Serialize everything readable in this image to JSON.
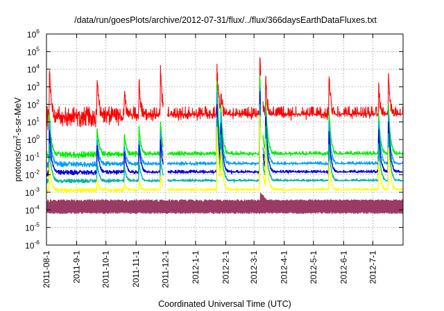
{
  "chart_data": {
    "type": "line",
    "title": "/data/run/goesPlots/archive/2012-07-31/flux/../flux/366daysEarthDataFluxes.txt",
    "xlabel": "Coordinated Universal Time (UTC)",
    "ylabel": {
      "base": "protons/cm",
      "sup": "2",
      "rest": "-s-sr-MeV"
    },
    "yscale": "log",
    "grid": true,
    "xlim": [
      "2011-08-01",
      "2012-08-01"
    ],
    "ylim": [
      1e-06,
      1000000.0
    ],
    "x_ticks": [
      "2011-08-1",
      "2011-9-1",
      "2011-10-1",
      "2011-11-1",
      "2011-12-1",
      "2012-1-1",
      "2012-2-1",
      "2012-3-1",
      "2012-4-1",
      "2012-5-1",
      "2012-6-1",
      "2012-7-1"
    ],
    "x_tick_dates": [
      "2011-08-01",
      "2011-09-01",
      "2011-10-01",
      "2011-11-01",
      "2011-12-01",
      "2012-01-01",
      "2012-02-01",
      "2012-03-01",
      "2012-04-01",
      "2012-05-01",
      "2012-06-01",
      "2012-07-01"
    ],
    "y_ticks": [
      {
        "value": 1e-06,
        "base": "10",
        "exp": "-6"
      },
      {
        "value": 1e-05,
        "base": "10",
        "exp": "-5"
      },
      {
        "value": 0.0001,
        "base": "10",
        "exp": "-4"
      },
      {
        "value": 0.001,
        "base": "10",
        "exp": "-3"
      },
      {
        "value": 0.01,
        "base": "10",
        "exp": "-2"
      },
      {
        "value": 0.1,
        "base": "10",
        "exp": "-1"
      },
      {
        "value": 1,
        "base": "10",
        "exp": "0"
      },
      {
        "value": 10,
        "base": "10",
        "exp": "1"
      },
      {
        "value": 100,
        "base": "10",
        "exp": "2"
      },
      {
        "value": 1000,
        "base": "10",
        "exp": "3"
      },
      {
        "value": 10000,
        "base": "10",
        "exp": "4"
      },
      {
        "value": 100000,
        "base": "10",
        "exp": "5"
      },
      {
        "value": 1000000,
        "base": "10",
        "exp": "6"
      }
    ],
    "series": [
      {
        "color": "#ff0000",
        "baseline": 12,
        "noise": 0.8,
        "events": [
          [
            "2011-08-04",
            10000
          ],
          [
            "2011-09-22",
            3000
          ],
          [
            "2011-10-20",
            600
          ],
          [
            "2011-11-04",
            2000
          ],
          [
            "2011-11-26",
            10000
          ],
          [
            "2012-01-23",
            10000
          ],
          [
            "2012-01-27",
            1000
          ],
          [
            "2012-03-07",
            100000
          ],
          [
            "2012-03-13",
            3000
          ],
          [
            "2012-05-17",
            5000
          ],
          [
            "2012-07-07",
            1000
          ],
          [
            "2012-07-17",
            3000
          ]
        ]
      },
      {
        "color": "#00ee00",
        "baseline": 0.12,
        "noise": 0.25,
        "events": [
          [
            "2011-08-04",
            30
          ],
          [
            "2011-09-22",
            5
          ],
          [
            "2011-10-20",
            2
          ],
          [
            "2011-11-04",
            5
          ],
          [
            "2011-11-26",
            10
          ],
          [
            "2012-01-23",
            2000
          ],
          [
            "2012-01-27",
            100
          ],
          [
            "2012-03-07",
            5000
          ],
          [
            "2012-03-13",
            200
          ],
          [
            "2012-05-17",
            50
          ],
          [
            "2012-07-07",
            30
          ],
          [
            "2012-07-17",
            100
          ]
        ]
      },
      {
        "color": "#00a0ff",
        "baseline": 0.035,
        "noise": 0.2,
        "events": [
          [
            "2011-08-04",
            10
          ],
          [
            "2011-09-22",
            1
          ],
          [
            "2011-10-20",
            0.5
          ],
          [
            "2011-11-04",
            1
          ],
          [
            "2011-11-26",
            3
          ],
          [
            "2012-01-23",
            500
          ],
          [
            "2012-01-27",
            30
          ],
          [
            "2012-03-07",
            1000
          ],
          [
            "2012-03-13",
            50
          ],
          [
            "2012-05-17",
            10
          ],
          [
            "2012-07-07",
            10
          ],
          [
            "2012-07-17",
            30
          ]
        ]
      },
      {
        "color": "#0000dd",
        "baseline": 0.012,
        "noise": 0.18,
        "events": [
          [
            "2011-08-04",
            3
          ],
          [
            "2011-09-22",
            0.5
          ],
          [
            "2011-10-20",
            0.2
          ],
          [
            "2011-11-04",
            0.5
          ],
          [
            "2011-11-26",
            1
          ],
          [
            "2012-01-23",
            100
          ],
          [
            "2012-01-27",
            10
          ],
          [
            "2012-03-07",
            500
          ],
          [
            "2012-03-13",
            20
          ],
          [
            "2012-05-17",
            3
          ],
          [
            "2012-07-07",
            3
          ],
          [
            "2012-07-17",
            10
          ]
        ]
      },
      {
        "color": "#00b5a0",
        "baseline": 0.004,
        "noise": 0.15,
        "events": [
          [
            "2011-08-04",
            0.5
          ],
          [
            "2011-09-22",
            0.05
          ],
          [
            "2011-10-20",
            0.03
          ],
          [
            "2011-11-04",
            0.05
          ],
          [
            "2011-11-26",
            0.1
          ],
          [
            "2012-01-23",
            20
          ],
          [
            "2012-01-27",
            2
          ],
          [
            "2012-03-07",
            100
          ],
          [
            "2012-03-13",
            5
          ],
          [
            "2012-05-17",
            0.5
          ],
          [
            "2012-07-07",
            0.5
          ],
          [
            "2012-07-17",
            2
          ]
        ]
      },
      {
        "color": "#ffff00",
        "baseline": 0.0012,
        "noise": 0.15,
        "events": [
          [
            "2011-08-04",
            0.05
          ],
          [
            "2011-09-22",
            0.005
          ],
          [
            "2011-10-20",
            0.003
          ],
          [
            "2011-11-04",
            0.005
          ],
          [
            "2011-11-26",
            0.01
          ],
          [
            "2012-01-23",
            5
          ],
          [
            "2012-01-27",
            0.3
          ],
          [
            "2012-03-07",
            20
          ],
          [
            "2012-03-13",
            1
          ],
          [
            "2012-05-17",
            0.05
          ],
          [
            "2012-07-07",
            0.05
          ],
          [
            "2012-07-17",
            0.3
          ]
        ]
      },
      {
        "color": "#9b3b63",
        "baseline": 0.0003,
        "band_low": 7e-05,
        "noise": 0.1,
        "events": [
          [
            "2012-03-08",
            0.003
          ]
        ]
      }
    ]
  }
}
